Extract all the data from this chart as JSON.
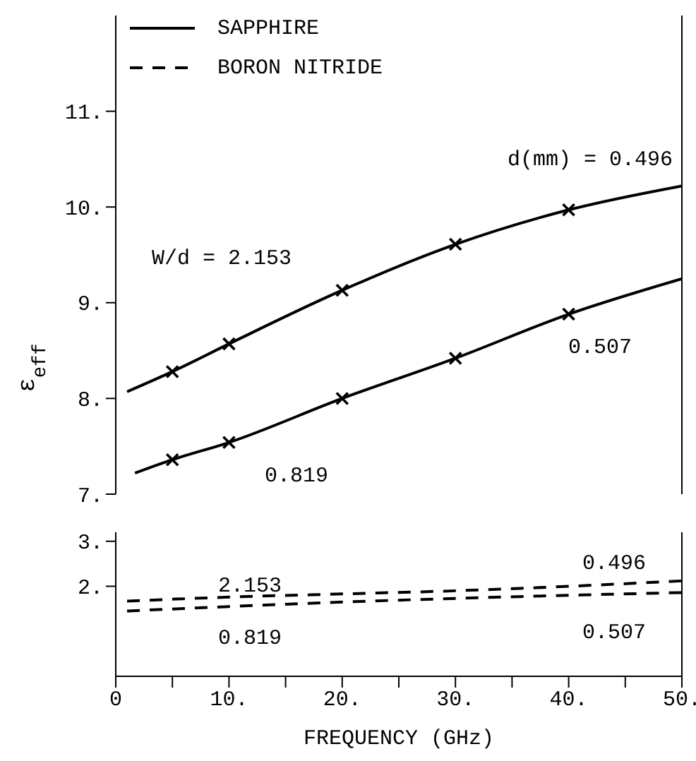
{
  "chart_data": [
    {
      "type": "line",
      "ylabel": "ε$_{eff}$",
      "xlim": [
        0,
        50
      ],
      "ylim": [
        7,
        12
      ],
      "yticks": [
        {
          "value": 7,
          "label": "7."
        },
        {
          "value": 8,
          "label": "8."
        },
        {
          "value": 9,
          "label": "9."
        },
        {
          "value": 10,
          "label": "10."
        },
        {
          "value": 11,
          "label": "11."
        }
      ],
      "tick_labels": "y",
      "legend": "top left",
      "marker": "none",
      "series": [
        {
          "name": "SAPPHIRE",
          "color": "#000000",
          "line_style": "solid",
          "x": [
            1,
            5,
            10,
            20,
            30,
            40,
            50
          ],
          "values": [
            8.07,
            8.28,
            8.57,
            9.13,
            9.61,
            9.97,
            10.22
          ]
        },
        {
          "color": "#000000",
          "line_style": "solid",
          "x": [
            1.7,
            5,
            10,
            20,
            30,
            40,
            50
          ],
          "values": [
            7.22,
            7.36,
            7.54,
            8.0,
            8.42,
            8.88,
            9.25
          ]
        },
        {
          "type": "scatter",
          "marker": "cross",
          "color": "#000000",
          "x": [
            5,
            10,
            20,
            30,
            40
          ],
          "values": [
            8.28,
            8.57,
            9.13,
            9.61,
            9.97
          ]
        },
        {
          "type": "scatter",
          "marker": "cross",
          "color": "#000000",
          "x": [
            5,
            10,
            20,
            30,
            40
          ],
          "values": [
            7.36,
            7.54,
            8.0,
            8.42,
            8.88
          ]
        }
      ],
      "annotations": [
        "d(mm) = 0.496",
        "W/d = 2.153",
        "0.819",
        "0.507"
      ]
    },
    {
      "type": "line",
      "xlabel": "FREQUENCY (GHz)",
      "xlim": [
        0,
        50
      ],
      "ylim": [
        0,
        3.2
      ],
      "xticks": [
        0,
        {
          "value": 5,
          "label": null
        },
        {
          "value": 10,
          "label": "10."
        },
        {
          "value": 15,
          "label": null
        },
        {
          "value": 20,
          "label": "20."
        },
        {
          "value": 25,
          "label": null
        },
        {
          "value": 30,
          "label": "30."
        },
        {
          "value": 35,
          "label": null
        },
        {
          "value": 40,
          "label": "40."
        },
        {
          "value": 45,
          "label": null
        },
        {
          "value": 50,
          "label": "50."
        }
      ],
      "yticks": [
        {
          "value": 2,
          "label": "2."
        },
        {
          "value": 3,
          "label": "3."
        }
      ],
      "marker": "none",
      "series": [
        {
          "name": "BORON NITRIDE",
          "color": "#000000",
          "line_style": "dashed",
          "x": [
            1,
            10,
            20,
            30,
            40,
            50
          ],
          "values": [
            1.67,
            1.76,
            1.83,
            1.9,
            2.0,
            2.12
          ]
        },
        {
          "color": "#000000",
          "line_style": "dashed",
          "x": [
            1,
            10,
            20,
            30,
            40,
            50
          ],
          "values": [
            1.45,
            1.55,
            1.65,
            1.73,
            1.8,
            1.86
          ]
        }
      ],
      "annotations": [
        "2.153",
        "0.819",
        "0.496",
        "0.507"
      ]
    }
  ]
}
